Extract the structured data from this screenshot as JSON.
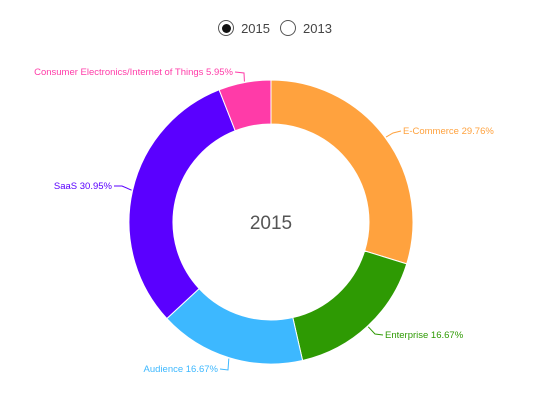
{
  "toggle": {
    "options": [
      {
        "label": "2015",
        "selected": true
      },
      {
        "label": "2013",
        "selected": false
      }
    ]
  },
  "chart_data": {
    "type": "pie",
    "variant": "donut",
    "center_label": "2015",
    "slices": [
      {
        "label": "E-Commerce",
        "value": 29.76,
        "display": "E-Commerce 29.76%",
        "color": "#FFA23E"
      },
      {
        "label": "Enterprise",
        "value": 16.67,
        "display": "Enterprise 16.67%",
        "color": "#2E9A03"
      },
      {
        "label": "Audience",
        "value": 16.67,
        "display": "Audience 16.67%",
        "color": "#3DB8FF"
      },
      {
        "label": "SaaS",
        "value": 30.95,
        "display": "SaaS 30.95%",
        "color": "#5A00FF"
      },
      {
        "label": "Consumer Electronics/Internet of Things",
        "value": 5.95,
        "display": "Consumer Electronics/Internet of Things 5.95%",
        "color": "#FF3BA8"
      }
    ]
  }
}
